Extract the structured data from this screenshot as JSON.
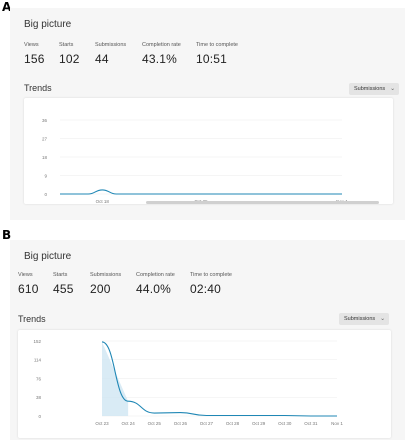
{
  "panels": [
    {
      "label": "A",
      "section_title": "Big picture",
      "stats": [
        {
          "label": "Views",
          "value": "156"
        },
        {
          "label": "Starts",
          "value": "102"
        },
        {
          "label": "Submissions",
          "value": "44"
        },
        {
          "label": "Completion rate",
          "value": "43.1%"
        },
        {
          "label": "Time to complete",
          "value": "10:51"
        }
      ],
      "trends_title": "Trends",
      "metric_select": "Submissions",
      "chart_data": {
        "type": "line",
        "y_ticks": [
          "36",
          "27",
          "18",
          "9",
          "0"
        ],
        "ylim": [
          0,
          36
        ],
        "x_ticks": [
          "Oct 18",
          "Oct 25",
          "Nov 1"
        ],
        "x": [
          0,
          1,
          2,
          3,
          4,
          5,
          6,
          7,
          8,
          9,
          10,
          11,
          12,
          13,
          14,
          15,
          16,
          17,
          18,
          19,
          20
        ],
        "tick_index": [
          3,
          10,
          20
        ],
        "series": [
          {
            "values": [
              0,
              0,
              0,
              2,
              0,
              0,
              0,
              0,
              0,
              0,
              0,
              0,
              0,
              0,
              0,
              0,
              0,
              0,
              0,
              0,
              0
            ]
          }
        ],
        "color": "#1f87b5",
        "scrollbar_fraction": [
          0.3,
          1.0
        ]
      }
    },
    {
      "label": "B",
      "section_title": "Big picture",
      "stats": [
        {
          "label": "Views",
          "value": "610"
        },
        {
          "label": "Starts",
          "value": "455"
        },
        {
          "label": "Submissions",
          "value": "200"
        },
        {
          "label": "Completion rate",
          "value": "44.0%"
        },
        {
          "label": "Time to complete",
          "value": "02:40"
        }
      ],
      "trends_title": "Trends",
      "metric_select": "Submissions",
      "chart_data": {
        "type": "area",
        "y_ticks": [
          "152",
          "114",
          "76",
          "38",
          "0"
        ],
        "ylim": [
          0,
          152
        ],
        "x_ticks": [
          "Oct 23",
          "Oct 24",
          "Oct 25",
          "Oct 26",
          "Oct 27",
          "Oct 28",
          "Oct 29",
          "Oct 30",
          "Oct 31",
          "Nov 1"
        ],
        "x": [
          0,
          1,
          2,
          3,
          4,
          5,
          6,
          7,
          8,
          9
        ],
        "tick_index": [
          0,
          1,
          2,
          3,
          4,
          5,
          6,
          7,
          8,
          9
        ],
        "series": [
          {
            "values": [
              150,
              30,
              6,
              7,
              1,
              1,
              1,
              1,
              0,
              0
            ]
          }
        ],
        "highlight_range": [
          0,
          1
        ],
        "color": "#1f87b5"
      }
    }
  ]
}
